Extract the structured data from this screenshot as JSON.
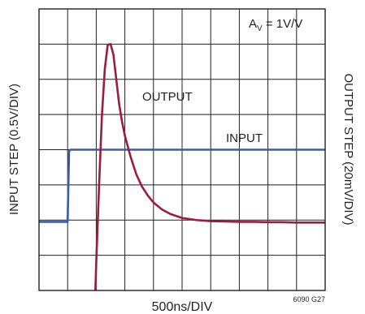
{
  "chart_data": {
    "type": "line",
    "title": "",
    "xlabel": "500ns/DIV",
    "ylabel_left": "INPUT STEP (0.5V/DIV)",
    "ylabel_right": "OUTPUT STEP (20mV/DIV)",
    "annotation_gain_main": "A",
    "annotation_gain_sub": "V",
    "annotation_gain_rest": " = 1V/V",
    "figure_code": "6090 G27",
    "grid": true,
    "x_unit": "DIV",
    "y_unit": "DIV",
    "xlim": [
      0,
      10
    ],
    "ylim": [
      0,
      8
    ],
    "series": [
      {
        "name": "INPUT",
        "color": "#3b5ba9",
        "x": [
          0,
          0.95,
          1.0,
          1.05,
          1.1,
          10
        ],
        "y": [
          1.95,
          1.95,
          1.95,
          3.95,
          4.0,
          4.0
        ]
      },
      {
        "name": "OUTPUT",
        "color": "#9a1d3f",
        "x": [
          1.95,
          2.0,
          2.1,
          2.2,
          2.3,
          2.4,
          2.5,
          2.6,
          2.7,
          2.8,
          2.9,
          3.0,
          3.2,
          3.4,
          3.6,
          3.8,
          4.0,
          4.3,
          4.6,
          5.0,
          5.5,
          6.0,
          6.5,
          7.0,
          7.5,
          8.0,
          8.5,
          9.0,
          9.5,
          10.0
        ],
        "y": [
          -0.5,
          0.8,
          3.0,
          5.0,
          6.3,
          6.98,
          7.0,
          6.7,
          6.0,
          5.3,
          4.8,
          4.4,
          3.8,
          3.3,
          2.95,
          2.7,
          2.5,
          2.3,
          2.17,
          2.06,
          2.0,
          1.97,
          1.96,
          1.95,
          1.95,
          1.94,
          1.94,
          1.93,
          1.93,
          1.93
        ]
      }
    ],
    "labels": {
      "output": "OUTPUT",
      "input": "INPUT"
    }
  }
}
